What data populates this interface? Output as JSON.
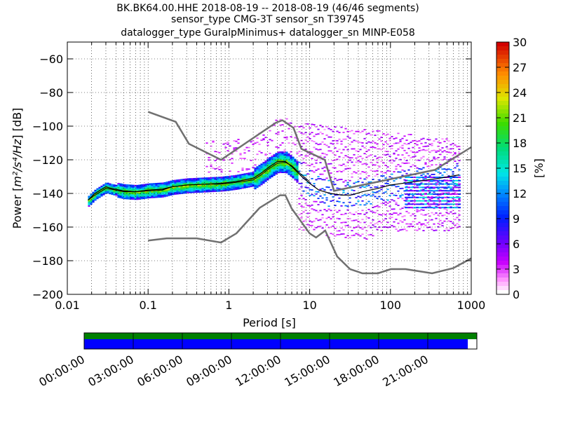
{
  "chart_data": {
    "type": "heatmap",
    "title_lines": [
      "BK.BK64.00.HHE   2018-08-19 -- 2018-08-19  (46/46 segments)",
      "sensor_type CMG-3T sensor_sn T39745",
      "datalogger_type GuralpMinimus+ datalogger_sn MINP-E058"
    ],
    "xlabel": "Period [s]",
    "ylabel_prefix": "Power [",
    "ylabel_unit": "m²/s⁴/Hz",
    "ylabel_suffix": "] [dB]",
    "x_scale": "log",
    "xlim": [
      0.01,
      1000
    ],
    "ylim": [
      -200,
      -50
    ],
    "x_tick_labels": [
      "0.01",
      "0.1",
      "1",
      "10",
      "100",
      "1000"
    ],
    "x_tick_values": [
      0.01,
      0.1,
      1,
      10,
      100,
      1000
    ],
    "y_tick_values": [
      -200,
      -180,
      -160,
      -140,
      -120,
      -100,
      -80,
      -60
    ],
    "y_tick_labels": [
      "−200",
      "−180",
      "−160",
      "−140",
      "−120",
      "−100",
      "−80",
      "−60"
    ],
    "colorbar": {
      "label": "[%]",
      "range": [
        0,
        30
      ],
      "tick_values": [
        0,
        3,
        6,
        9,
        12,
        15,
        18,
        21,
        24,
        27,
        30
      ],
      "tick_labels": [
        "0",
        "3",
        "6",
        "9",
        "12",
        "15",
        "18",
        "21",
        "24",
        "27",
        "30"
      ]
    },
    "nhnm": {
      "x": [
        0.1,
        0.22,
        0.32,
        0.8,
        3.8,
        4.6,
        6.3,
        7.9,
        15.4,
        20,
        354.8,
        1000
      ],
      "y": [
        -91.5,
        -97.4,
        -110.5,
        -120,
        -98,
        -96.5,
        -101,
        -113.5,
        -120,
        -138.5,
        -126,
        -112.5
      ]
    },
    "nlnm": {
      "x": [
        0.1,
        0.17,
        0.4,
        0.8,
        1.24,
        2.4,
        4.3,
        5,
        6,
        10,
        12,
        15.6,
        21.9,
        31.6,
        45,
        70,
        101,
        154,
        328,
        600,
        1000
      ],
      "y": [
        -168,
        -166.7,
        -166.7,
        -169.2,
        -163.7,
        -148.6,
        -141.1,
        -141.1,
        -149,
        -163.8,
        -166.2,
        -162.1,
        -177.5,
        -185,
        -187.5,
        -187.5,
        -185,
        -185,
        -187.5,
        -184.4,
        -178.6
      ]
    },
    "mean_curve": {
      "x": [
        0.018,
        0.022,
        0.03,
        0.035,
        0.05,
        0.07,
        0.1,
        0.15,
        0.2,
        0.3,
        0.5,
        0.8,
        1.2,
        2,
        2.5,
        3.2,
        4,
        5,
        6,
        8,
        10,
        13,
        18,
        25,
        32,
        45,
        70,
        100,
        200,
        400,
        700
      ],
      "y": [
        -144,
        -140,
        -136,
        -137,
        -138.5,
        -139,
        -138,
        -137.5,
        -136,
        -135,
        -134.5,
        -134,
        -133,
        -131,
        -128,
        -124,
        -121,
        -121,
        -124,
        -130,
        -134,
        -138,
        -140,
        -141,
        -141,
        -139,
        -137,
        -135,
        -133,
        -131,
        -129
      ]
    },
    "mode_curve": {
      "x": [
        0.018,
        0.022,
        0.03,
        0.035,
        0.05,
        0.07,
        0.1,
        0.15,
        0.2,
        0.3,
        0.5,
        0.8,
        1.2,
        2,
        2.5,
        3.2,
        4,
        5,
        6,
        8,
        10
      ],
      "y": [
        -144,
        -141,
        -137,
        -137.5,
        -139,
        -139,
        -138.5,
        -138,
        -136,
        -135,
        -134.5,
        -134.5,
        -133.5,
        -132,
        -129,
        -125,
        -122,
        -121.5,
        -123.5,
        -129,
        -133
      ]
    },
    "time_axis": {
      "tick_labels": [
        "00:00:00",
        "03:00:00",
        "06:00:00",
        "09:00:00",
        "12:00:00",
        "15:00:00",
        "18:00:00",
        "21:00:00"
      ],
      "data_coverage_fraction": 0.977
    }
  },
  "colors": {
    "model_curves": "#707070",
    "mean_curve": "#000000",
    "coverage_top": "#008000",
    "coverage_bottom": "#0000ff"
  }
}
